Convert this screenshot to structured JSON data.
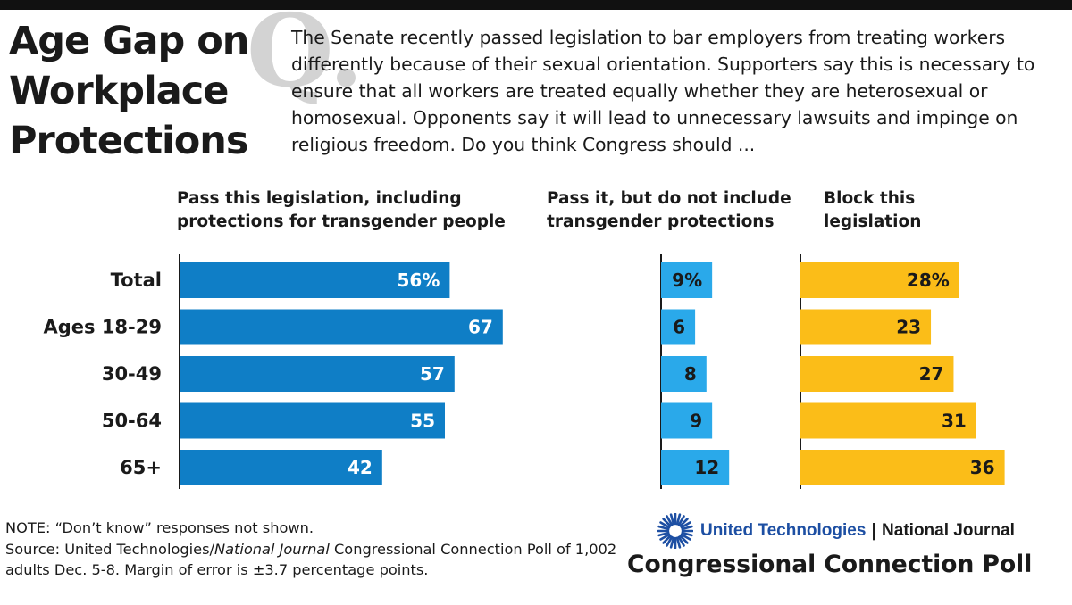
{
  "title": "Age Gap on Workplace Protections",
  "question_mark": "Q.",
  "question": "The Senate recently passed legislation to bar employers from treating workers differently because of their sexual orientation.  Supporters say this is necessary to ensure that all workers are treated equally whether they are heterosexual or homosexual. Opponents say it will lead to unnecessary lawsuits and impinge on religious freedom. Do you think Congress should ...",
  "colors": {
    "pass_all": "#0f7ec6",
    "pass_partial": "#2aa9ea",
    "block": "#fbbd18",
    "axis": "#1a1a1a",
    "brand_blue": "#1d4fa3"
  },
  "chart_data": {
    "type": "bar",
    "orientation": "horizontal",
    "categories": [
      "Total",
      "Ages 18-29",
      "30-49",
      "50-64",
      "65+"
    ],
    "series": [
      {
        "name": "Pass this legislation, including protections for transgender people",
        "values": [
          56,
          67,
          57,
          55,
          42
        ],
        "labels": [
          "56%",
          "67",
          "57",
          "55",
          "42"
        ]
      },
      {
        "name": "Pass it, but do not include transgender protections",
        "values": [
          9,
          6,
          8,
          9,
          12
        ],
        "labels": [
          "9%",
          "6",
          "8",
          "9",
          "12"
        ]
      },
      {
        "name": "Block this legislation",
        "values": [
          28,
          23,
          27,
          31,
          36
        ],
        "labels": [
          "28%",
          "23",
          "27",
          "31",
          "36"
        ]
      }
    ],
    "unit": "percent"
  },
  "note": {
    "line1": "NOTE: “Don’t know” responses not shown.",
    "source_prefix": "Source: United Technologies/",
    "source_title": "National Journal",
    "source_suffix": " Congressional Connection Poll of 1,002 adults Dec. 5-8. Margin of error is ±3.7 percentage points."
  },
  "brand": {
    "company": "United Technologies",
    "separator": "|",
    "partner": "National Journal",
    "poll_name": "Congressional Connection Poll",
    "logo_icon": "united-technologies-logo"
  }
}
